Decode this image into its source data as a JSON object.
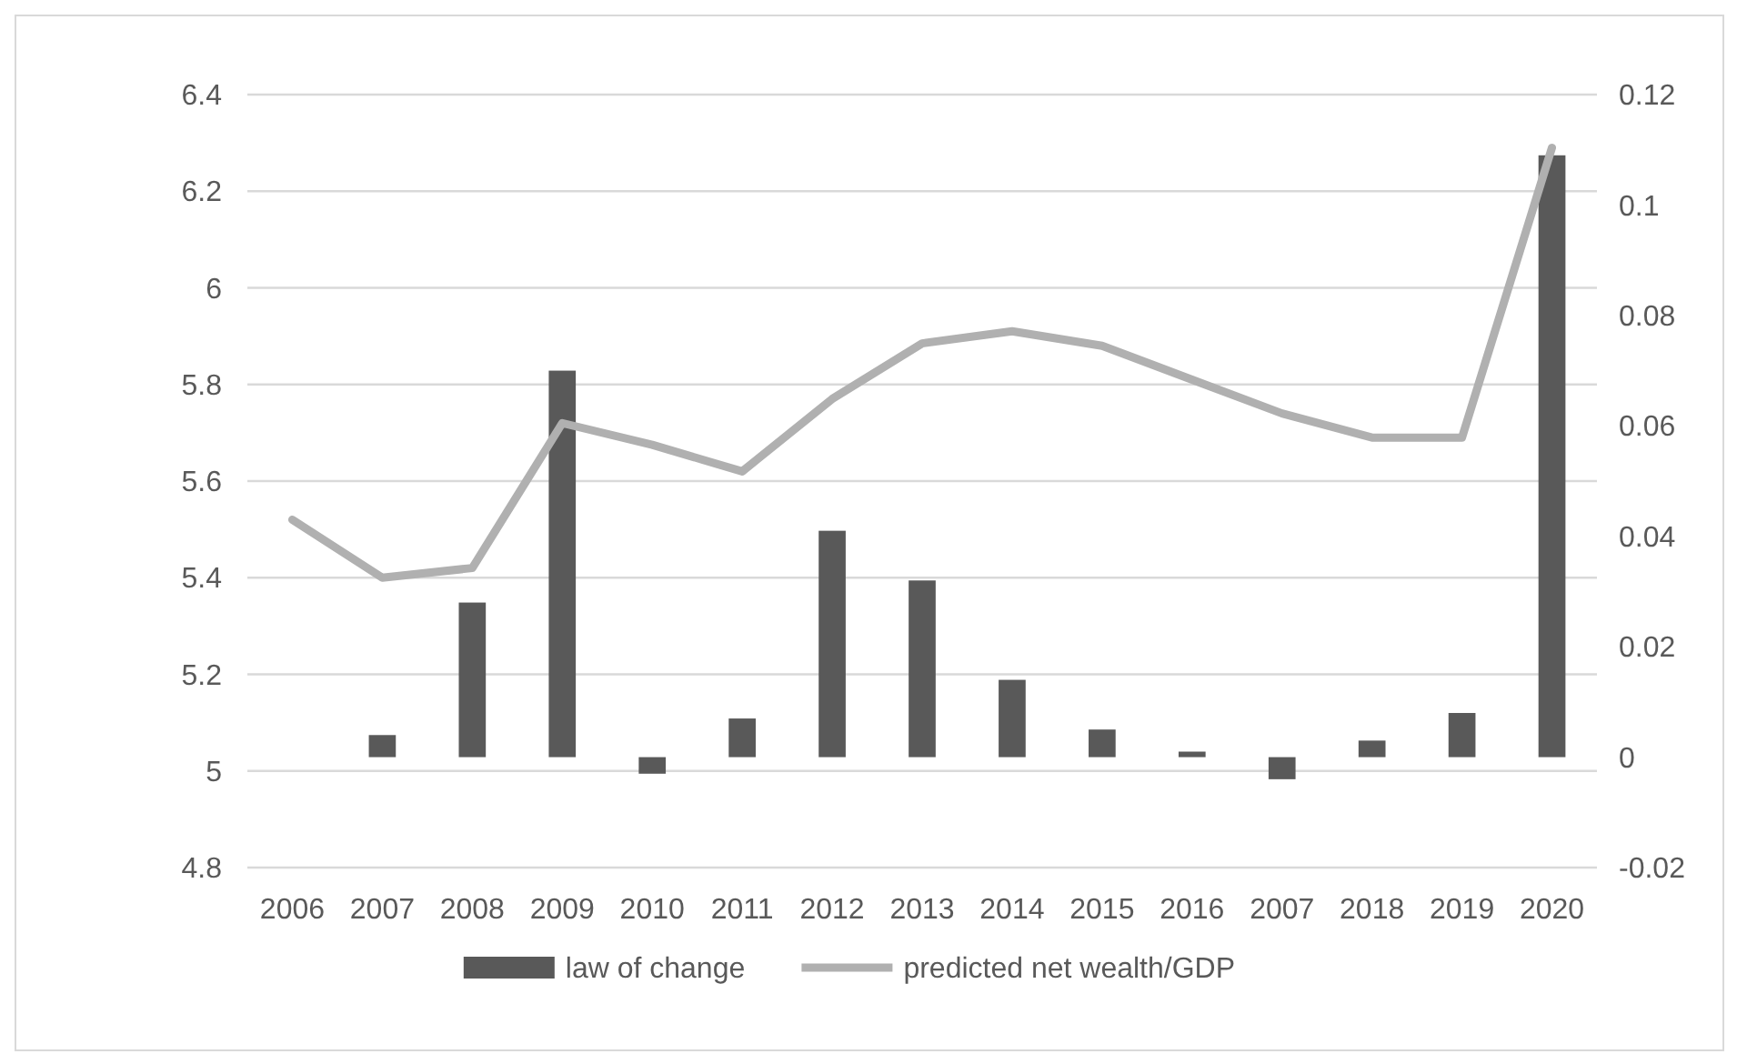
{
  "chart_data": {
    "type": "bar",
    "categories": [
      "2006",
      "2007",
      "2008",
      "2009",
      "2010",
      "2011",
      "2012",
      "2013",
      "2014",
      "2015",
      "2016",
      "2007",
      "2018",
      "2019",
      "2020"
    ],
    "series": [
      {
        "name": "law of change",
        "axis": "y2",
        "color": "#595959",
        "values": [
          null,
          0.004,
          0.028,
          0.07,
          -0.003,
          0.007,
          0.041,
          0.032,
          0.014,
          0.005,
          0.001,
          -0.004,
          0.003,
          0.008,
          0.109
        ]
      },
      {
        "name": "predicted net wealth/GDP",
        "type": "line",
        "color": "#b0b0b0",
        "values": [
          5.52,
          5.4,
          5.42,
          5.72,
          5.675,
          5.62,
          5.77,
          5.885,
          5.91,
          5.88,
          5.81,
          5.74,
          5.69,
          5.69,
          6.29
        ]
      }
    ],
    "ylim": [
      4.8,
      6.4
    ],
    "yticks": [
      {
        "value": 4.8,
        "label": "4.8"
      },
      {
        "value": 5,
        "label": "5"
      },
      {
        "value": 5.2,
        "label": "5.2"
      },
      {
        "value": 5.4,
        "label": "5.4"
      },
      {
        "value": 5.6,
        "label": "5.6"
      },
      {
        "value": 5.8,
        "label": "5.8"
      },
      {
        "value": 6,
        "label": "6"
      },
      {
        "value": 6.2,
        "label": "6.2"
      },
      {
        "value": 6.4,
        "label": "6.4"
      }
    ],
    "y2lim": [
      -0.02,
      0.12
    ],
    "y2ticks": [
      {
        "value": -0.02,
        "label": "-0.02"
      },
      {
        "value": 0,
        "label": "0"
      },
      {
        "value": 0.02,
        "label": "0.02"
      },
      {
        "value": 0.04,
        "label": "0.04"
      },
      {
        "value": 0.06,
        "label": "0.06"
      },
      {
        "value": 0.08,
        "label": "0.08"
      },
      {
        "value": 0.1,
        "label": "0.1"
      },
      {
        "value": 0.12,
        "label": "0.12"
      }
    ],
    "grid": "y",
    "legend": "bottom",
    "marker": "none",
    "line_style": "solid"
  }
}
